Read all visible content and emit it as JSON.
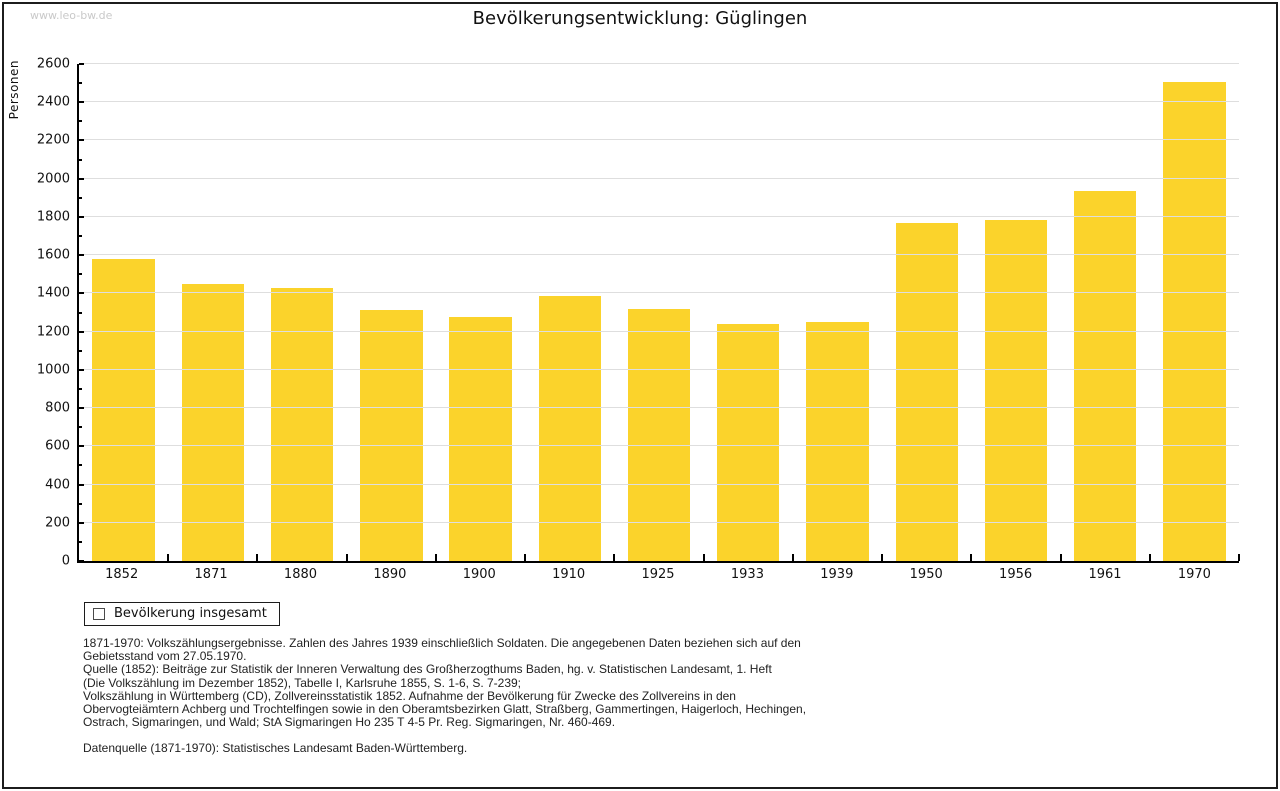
{
  "page": {
    "watermark": "www.leo-bw.de",
    "title": "Bevölkerungsentwicklung: Güglingen"
  },
  "chart_data": {
    "type": "bar",
    "title": "Bevölkerungsentwicklung: Güglingen",
    "ylabel": "Personen",
    "xlabel": "",
    "categories": [
      "1852",
      "1871",
      "1880",
      "1890",
      "1900",
      "1910",
      "1925",
      "1933",
      "1939",
      "1950",
      "1956",
      "1961",
      "1970"
    ],
    "values": [
      1580,
      1447,
      1430,
      1314,
      1277,
      1385,
      1317,
      1240,
      1251,
      1768,
      1782,
      1938,
      2505
    ],
    "ylim": [
      0,
      2600
    ],
    "ytick_step": 200,
    "minor_tick_step": 100,
    "grid": true,
    "bar_color": "#FBD32B",
    "gridline_color": "#dedede",
    "legend": {
      "position": "bottom-left",
      "entries": [
        "Bevölkerung insgesamt"
      ]
    }
  },
  "footer": {
    "lines": [
      "1871-1970: Volkszählungsergebnisse. Zahlen des Jahres 1939 einschließlich Soldaten. Die angegebenen Daten beziehen sich auf den",
      "Gebietsstand vom 27.05.1970.",
      "Quelle (1852): Beiträge zur Statistik der Inneren Verwaltung des Großherzogthums Baden, hg. v. Statistischen Landesamt, 1. Heft",
      "(Die Volkszählung im Dezember 1852), Tabelle I, Karlsruhe 1855, S. 1-6, S. 7-239;",
      "Volkszählung in Württemberg (CD), Zollvereinsstatistik 1852. Aufnahme der Bevölkerung für Zwecke des Zollvereins in den",
      "Obervogteiämtern Achberg und Trochtelfingen sowie in den Oberamtsbezirken Glatt, Straßberg, Gammertingen, Haigerloch, Hechingen,",
      "Ostrach, Sigmaringen, und Wald; StA Sigmaringen Ho 235 T 4-5 Pr. Reg. Sigmaringen, Nr. 460-469."
    ],
    "datasource": "Datenquelle (1871-1970): Statistisches Landesamt Baden-Württemberg."
  }
}
